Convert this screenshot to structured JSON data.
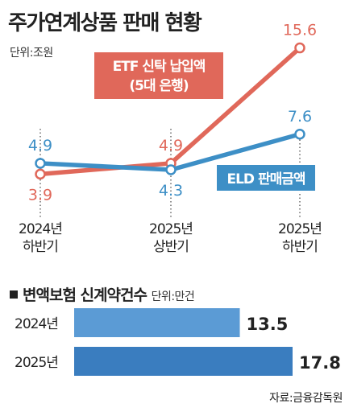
{
  "title": "주가연계상품 판매 현황",
  "unit": "단위:조원",
  "chart_data": [
    {
      "type": "line",
      "categories": [
        [
          "2024년",
          "하반기"
        ],
        [
          "2025년",
          "상반기"
        ],
        [
          "2025년",
          "하반기"
        ]
      ],
      "series": [
        {
          "name": "ETF 신탁 납입액 (5대 은행)",
          "name_lines": [
            "ETF 신탁 납입액",
            "(5대 은행)"
          ],
          "color": "#e0685a",
          "values": [
            3.9,
            4.9,
            15.6
          ],
          "label_pos": [
            "below",
            "above",
            "above"
          ]
        },
        {
          "name": "ELD 판매금액",
          "name_lines": [
            "ELD 판매금액"
          ],
          "color": "#3d8fc6",
          "values": [
            4.9,
            4.3,
            7.6
          ],
          "label_pos": [
            "above",
            "below",
            "above"
          ]
        }
      ],
      "ylim": [
        3.0,
        16.5
      ],
      "grid": false
    },
    {
      "type": "bar",
      "title": "변액보험 신계약건수",
      "unit": "단위:만건",
      "orientation": "horizontal",
      "categories": [
        "2024년",
        "2025년"
      ],
      "values": [
        13.5,
        17.8
      ],
      "colors": [
        "#5b9bd5",
        "#3a7dbf"
      ],
      "xlim": [
        0,
        17.8
      ]
    }
  ],
  "source": "자료:금융감독원"
}
